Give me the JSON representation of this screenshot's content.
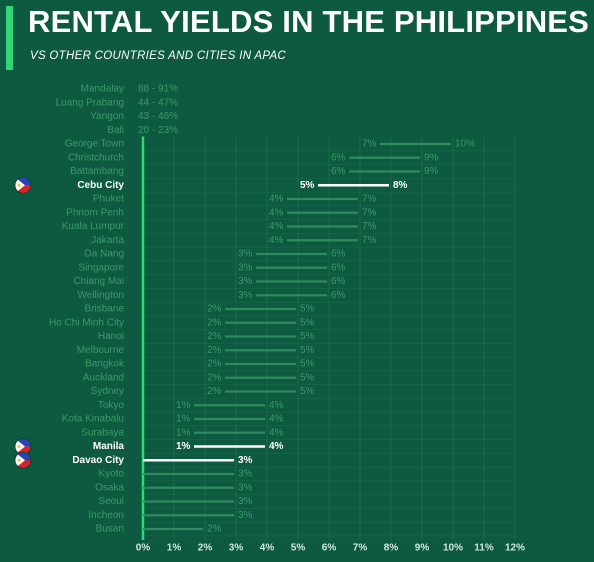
{
  "title": "RENTAL YIELDS IN THE PHILIPPINES",
  "subtitle": "VS OTHER COUNTRIES AND CITIES IN APAC",
  "colors": {
    "background": "#0d5a40",
    "accent": "#2fd67a",
    "range_line": "#2f8a5e",
    "muted_text": "#3a9a68",
    "highlight": "#ffffff"
  },
  "chart_data": {
    "type": "bar",
    "subtype": "range",
    "x_unit": "%",
    "xlim": [
      0,
      12
    ],
    "x_ticks": [
      "0%",
      "1%",
      "2%",
      "3%",
      "4%",
      "5%",
      "6%",
      "7%",
      "8%",
      "9%",
      "10%",
      "11%",
      "12%"
    ],
    "grid": true,
    "off_scale": [
      {
        "city": "Mandalay",
        "label": "88 - 91%"
      },
      {
        "city": "Luang Prabang",
        "label": "44 - 47%"
      },
      {
        "city": "Yangon",
        "label": "43 - 46%"
      },
      {
        "city": "Bali",
        "label": "20 - 23%"
      }
    ],
    "ranges": [
      {
        "city": "George Town",
        "low": 7,
        "high": 10,
        "low_label": "7%",
        "high_label": "10%",
        "highlight": false
      },
      {
        "city": "Christchurch",
        "low": 6,
        "high": 9,
        "low_label": "6%",
        "high_label": "9%",
        "highlight": false
      },
      {
        "city": "Battambang",
        "low": 6,
        "high": 9,
        "low_label": "6%",
        "high_label": "9%",
        "highlight": false
      },
      {
        "city": "Cebu City",
        "low": 5,
        "high": 8,
        "low_label": "5%",
        "high_label": "8%",
        "highlight": true
      },
      {
        "city": "Phuket",
        "low": 4,
        "high": 7,
        "low_label": "4%",
        "high_label": "7%",
        "highlight": false
      },
      {
        "city": "Phnom Penh",
        "low": 4,
        "high": 7,
        "low_label": "4%",
        "high_label": "7%",
        "highlight": false
      },
      {
        "city": "Kuala Lumpur",
        "low": 4,
        "high": 7,
        "low_label": "4%",
        "high_label": "7%",
        "highlight": false
      },
      {
        "city": "Jakarta",
        "low": 4,
        "high": 7,
        "low_label": "4%",
        "high_label": "7%",
        "highlight": false
      },
      {
        "city": "Da Nang",
        "low": 3,
        "high": 6,
        "low_label": "3%",
        "high_label": "6%",
        "highlight": false
      },
      {
        "city": "Singapore",
        "low": 3,
        "high": 6,
        "low_label": "3%",
        "high_label": "6%",
        "highlight": false
      },
      {
        "city": "Chiang Mai",
        "low": 3,
        "high": 6,
        "low_label": "3%",
        "high_label": "6%",
        "highlight": false
      },
      {
        "city": "Wellington",
        "low": 3,
        "high": 6,
        "low_label": "3%",
        "high_label": "6%",
        "highlight": false
      },
      {
        "city": "Brisbane",
        "low": 2,
        "high": 5,
        "low_label": "2%",
        "high_label": "5%",
        "highlight": false
      },
      {
        "city": "Ho Chi Minh City",
        "low": 2,
        "high": 5,
        "low_label": "2%",
        "high_label": "5%",
        "highlight": false
      },
      {
        "city": "Hanoi",
        "low": 2,
        "high": 5,
        "low_label": "2%",
        "high_label": "5%",
        "highlight": false
      },
      {
        "city": "Melbourne",
        "low": 2,
        "high": 5,
        "low_label": "2%",
        "high_label": "5%",
        "highlight": false
      },
      {
        "city": "Bangkok",
        "low": 2,
        "high": 5,
        "low_label": "2%",
        "high_label": "5%",
        "highlight": false
      },
      {
        "city": "Auckland",
        "low": 2,
        "high": 5,
        "low_label": "2%",
        "high_label": "5%",
        "highlight": false
      },
      {
        "city": "Sydney",
        "low": 2,
        "high": 5,
        "low_label": "2%",
        "high_label": "5%",
        "highlight": false
      },
      {
        "city": "Tokyo",
        "low": 1,
        "high": 4,
        "low_label": "1%",
        "high_label": "4%",
        "highlight": false
      },
      {
        "city": "Kota Kinabalu",
        "low": 1,
        "high": 4,
        "low_label": "1%",
        "high_label": "4%",
        "highlight": false
      },
      {
        "city": "Surabaya",
        "low": 1,
        "high": 4,
        "low_label": "1%",
        "high_label": "4%",
        "highlight": false
      },
      {
        "city": "Manila",
        "low": 1,
        "high": 4,
        "low_label": "1%",
        "high_label": "4%",
        "highlight": true
      },
      {
        "city": "Davao City",
        "low": 0,
        "high": 3,
        "low_label": "",
        "high_label": "3%",
        "highlight": true
      },
      {
        "city": "Kyoto",
        "low": 0,
        "high": 3,
        "low_label": "",
        "high_label": "3%",
        "highlight": false
      },
      {
        "city": "Osaka",
        "low": 0,
        "high": 3,
        "low_label": "",
        "high_label": "3%",
        "highlight": false
      },
      {
        "city": "Seoul",
        "low": 0,
        "high": 3,
        "low_label": "",
        "high_label": "3%",
        "highlight": false
      },
      {
        "city": "Incheon",
        "low": 0,
        "high": 3,
        "low_label": "",
        "high_label": "3%",
        "highlight": false
      },
      {
        "city": "Busan",
        "low": 0,
        "high": 2,
        "low_label": "",
        "high_label": "2%",
        "highlight": false
      }
    ]
  }
}
